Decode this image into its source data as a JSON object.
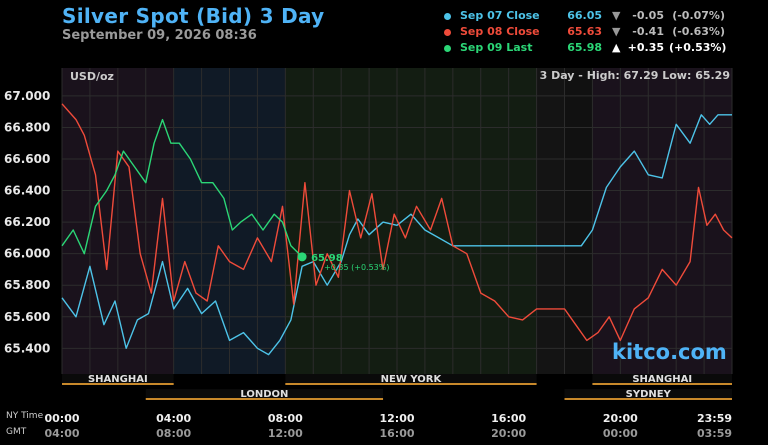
{
  "title": "Silver Spot (Bid) 3 Day",
  "date": "September 09, 2026 08:36",
  "legend": [
    {
      "label": "Sep 07 Close",
      "value": "66.05",
      "arrow": "▼",
      "change": "-0.05",
      "percent": "(-0.07%)",
      "color": "#4dc3e8"
    },
    {
      "label": "Sep 08 Close",
      "value": "65.63",
      "arrow": "▼",
      "change": "-0.41",
      "percent": "(-0.63%)",
      "color": "#ef4b3a"
    },
    {
      "label": "Sep 09 Last",
      "value": "65.98",
      "arrow": "▲",
      "change": "+0.35",
      "percent": "(+0.53%)",
      "color": "#2bd676"
    }
  ],
  "unit": "USD/oz",
  "high_low": "3 Day - High: 67.29  Low: 65.29",
  "watermark": "kitco.com",
  "ny_label": "NY Time",
  "gmt_label": "GMT",
  "chart_data": {
    "type": "line",
    "ylim": [
      65.25,
      67.05
    ],
    "yticks": [
      "65.400",
      "65.600",
      "65.800",
      "66.000",
      "66.200",
      "66.400",
      "66.600",
      "66.800",
      "67.000"
    ],
    "xlim": [
      0,
      24
    ],
    "xticks_ny": [
      "00:00",
      "04:00",
      "08:00",
      "12:00",
      "16:00",
      "20:00",
      "23:59"
    ],
    "xticks_gmt": [
      "04:00",
      "08:00",
      "12:00",
      "16:00",
      "20:00",
      "00:00",
      "03:59"
    ],
    "last_marker": {
      "x": 8.6,
      "value": "65.98",
      "change": "+0.35 (+0.53%)"
    },
    "sessions": [
      {
        "name": "SHANGHAI",
        "start": 0,
        "end": 4.0,
        "row": 1
      },
      {
        "name": "NEW YORK",
        "start": 8.0,
        "end": 17.0,
        "row": 1
      },
      {
        "name": "SHANGHAI",
        "start": 19.0,
        "end": 24,
        "row": 1
      },
      {
        "name": "LONDON",
        "start": 3.0,
        "end": 11.5,
        "row": 2
      },
      {
        "name": "SYDNEY",
        "start": 18.0,
        "end": 24,
        "row": 2
      }
    ],
    "series": [
      {
        "name": "Sep 07 Close",
        "color": "#4dc3e8",
        "x": [
          0,
          0.5,
          1,
          1.5,
          1.9,
          2.3,
          2.7,
          3.1,
          3.6,
          4.0,
          4.5,
          5.0,
          5.5,
          6.0,
          6.5,
          7.0,
          7.4,
          7.8,
          8.2,
          8.6,
          9.0,
          9.5,
          10.0,
          10.3,
          10.6,
          11.0,
          11.5,
          12.0,
          12.5,
          13.0,
          13.5,
          14.0,
          14.5,
          15.0,
          15.5,
          16.0,
          16.5,
          17.0,
          17.5,
          18.0,
          18.2,
          18.6,
          19.0,
          19.5,
          20.0,
          20.5,
          21.0,
          21.5,
          22.0,
          22.5,
          22.9,
          23.2,
          23.5,
          24
        ],
        "y": [
          65.72,
          65.6,
          65.92,
          65.55,
          65.7,
          65.4,
          65.58,
          65.62,
          65.95,
          65.65,
          65.78,
          65.62,
          65.7,
          65.45,
          65.5,
          65.4,
          65.36,
          65.45,
          65.58,
          65.92,
          65.95,
          65.8,
          65.95,
          66.12,
          66.22,
          66.12,
          66.2,
          66.18,
          66.25,
          66.15,
          66.1,
          66.05,
          66.05,
          66.05,
          66.05,
          66.05,
          66.05,
          66.05,
          66.05,
          66.05,
          66.05,
          66.05,
          66.15,
          66.42,
          66.55,
          66.65,
          66.5,
          66.48,
          66.82,
          66.7,
          66.88,
          66.82,
          66.88,
          66.88
        ]
      },
      {
        "name": "Sep 08 Close",
        "color": "#ef4b3a",
        "x": [
          0,
          0.5,
          0.8,
          1.2,
          1.6,
          2.0,
          2.4,
          2.8,
          3.2,
          3.6,
          4.0,
          4.4,
          4.8,
          5.2,
          5.6,
          6.0,
          6.5,
          7.0,
          7.5,
          7.9,
          8.3,
          8.7,
          9.1,
          9.5,
          9.9,
          10.3,
          10.7,
          11.1,
          11.5,
          11.9,
          12.3,
          12.7,
          13.2,
          13.6,
          14.0,
          14.5,
          15.0,
          15.5,
          16.0,
          16.5,
          17.0,
          17.5,
          18.0,
          18.4,
          18.8,
          19.2,
          19.6,
          20.0,
          20.5,
          21.0,
          21.5,
          22.0,
          22.5,
          22.8,
          23.1,
          23.4,
          23.7,
          24
        ],
        "y": [
          66.95,
          66.85,
          66.75,
          66.5,
          65.9,
          66.65,
          66.55,
          66.0,
          65.75,
          66.35,
          65.7,
          65.95,
          65.75,
          65.7,
          66.05,
          65.95,
          65.9,
          66.1,
          65.95,
          66.3,
          65.68,
          66.45,
          65.8,
          66.0,
          65.85,
          66.4,
          66.1,
          66.38,
          65.9,
          66.25,
          66.1,
          66.3,
          66.15,
          66.35,
          66.05,
          66.0,
          65.75,
          65.7,
          65.6,
          65.58,
          65.65,
          65.65,
          65.65,
          65.55,
          65.45,
          65.5,
          65.6,
          65.45,
          65.65,
          65.72,
          65.9,
          65.8,
          65.95,
          66.42,
          66.18,
          66.25,
          66.15,
          66.1
        ]
      },
      {
        "name": "Sep 09 Last",
        "color": "#2bd676",
        "x": [
          0,
          0.4,
          0.8,
          1.2,
          1.6,
          1.9,
          2.2,
          2.6,
          3.0,
          3.3,
          3.6,
          3.9,
          4.2,
          4.6,
          5.0,
          5.4,
          5.8,
          6.1,
          6.4,
          6.8,
          7.2,
          7.6,
          7.9,
          8.2,
          8.6
        ],
        "y": [
          66.05,
          66.15,
          66.0,
          66.3,
          66.4,
          66.5,
          66.65,
          66.55,
          66.45,
          66.7,
          66.85,
          66.7,
          66.7,
          66.6,
          66.45,
          66.45,
          66.35,
          66.15,
          66.2,
          66.25,
          66.15,
          66.25,
          66.2,
          66.05,
          65.98
        ]
      }
    ]
  }
}
